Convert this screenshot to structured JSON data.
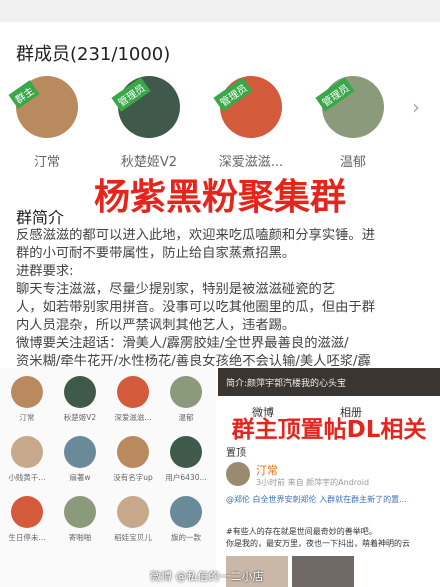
{
  "header": {
    "title": "群成员(231/1000)"
  },
  "admins": [
    {
      "name": "汀常",
      "badge": "群主"
    },
    {
      "name": "秋楚姬V2",
      "badge": "管理员"
    },
    {
      "name": "深爱滋滋...",
      "badge": "管理员"
    },
    {
      "name": "温郁",
      "badge": "管理员"
    }
  ],
  "overlay_title": "杨紫黑粉聚集群",
  "intro": {
    "title": "群简介",
    "lines": [
      "反感滋滋的都可以进入此地，欢迎来吃瓜嗑颜和分享实锤。进",
      "群的小可耐不要带属性，防止给自家蒸煮招黑。",
      "进群要求:",
      "聊天专注滋滋，尽量少提别家，特别是被滋滋碰瓷的艺",
      "人，如若带别家用拼音。没事可以吃其他圈里的瓜，但由于群",
      "内人员混杂，所以严禁讽刺其他艺人，违者踢。",
      "微博要关注超话：滑美人/霹雳胶娃/全世界最善良的滋滋/",
      "资米糊/牵牛花开/水性杨花/善良女孩绝不会认输/美人呸浆/霹"
    ]
  },
  "member_grid": [
    "汀常",
    "秋楚姬V2",
    "深爱滋滋...",
    "温郁",
    "小贱黄千...",
    "扇著w",
    "没有名字up",
    "用户6430...",
    "生日停未...",
    "寄啪啪",
    "稻娃宝贝儿",
    "旗的一款"
  ],
  "post": {
    "banner": "简介:颜萍宇郭汽楼我的心头宝",
    "tabs": [
      "微博",
      "相册"
    ],
    "pinned": "置顶",
    "user": "汀常",
    "meta": "3小时前  来自 颜萍宇的Android",
    "mention": "@郑伦 白全世界安刺郑伦 入群就在群主新了的置...",
    "text": [
      "#有些人的存在就是世间最奇妙的善举吧。",
      "你是我的，最安万里，夜也一下抖出，萌着神明的云"
    ]
  },
  "overlay_caption": "群主顶置帖DL相关",
  "watermark": "微博 @私信的一二小店"
}
